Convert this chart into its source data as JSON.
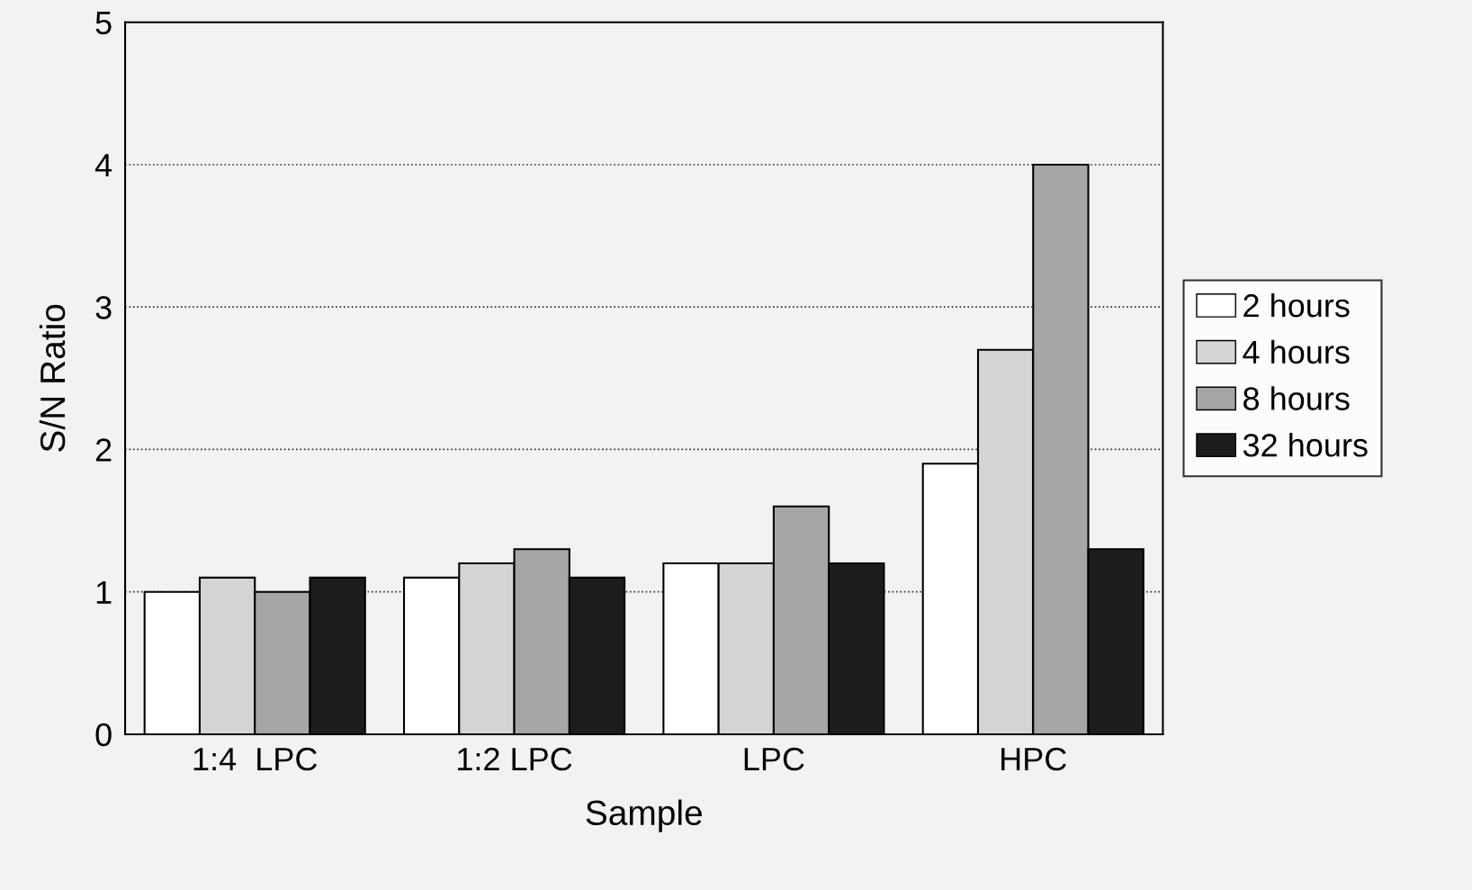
{
  "chart_data": {
    "type": "bar",
    "xlabel": "Sample",
    "ylabel": "S/N Ratio",
    "categories": [
      "1:4  LPC",
      "1:2 LPC",
      "LPC",
      "HPC"
    ],
    "series": [
      {
        "name": "2 hours",
        "color": "#ffffff",
        "values": [
          1.0,
          1.1,
          1.2,
          1.9
        ]
      },
      {
        "name": "4 hours",
        "color": "#d4d4d4",
        "values": [
          1.1,
          1.2,
          1.2,
          2.7
        ]
      },
      {
        "name": "8 hours",
        "color": "#a6a6a6",
        "values": [
          1.0,
          1.3,
          1.6,
          4.0
        ]
      },
      {
        "name": "32 hours",
        "color": "#1c1c1c",
        "values": [
          1.1,
          1.1,
          1.2,
          1.3
        ]
      }
    ],
    "ylim": [
      0,
      5
    ],
    "yticks": [
      0,
      1,
      2,
      3,
      4,
      5
    ],
    "grid": "y",
    "legend": "right"
  }
}
